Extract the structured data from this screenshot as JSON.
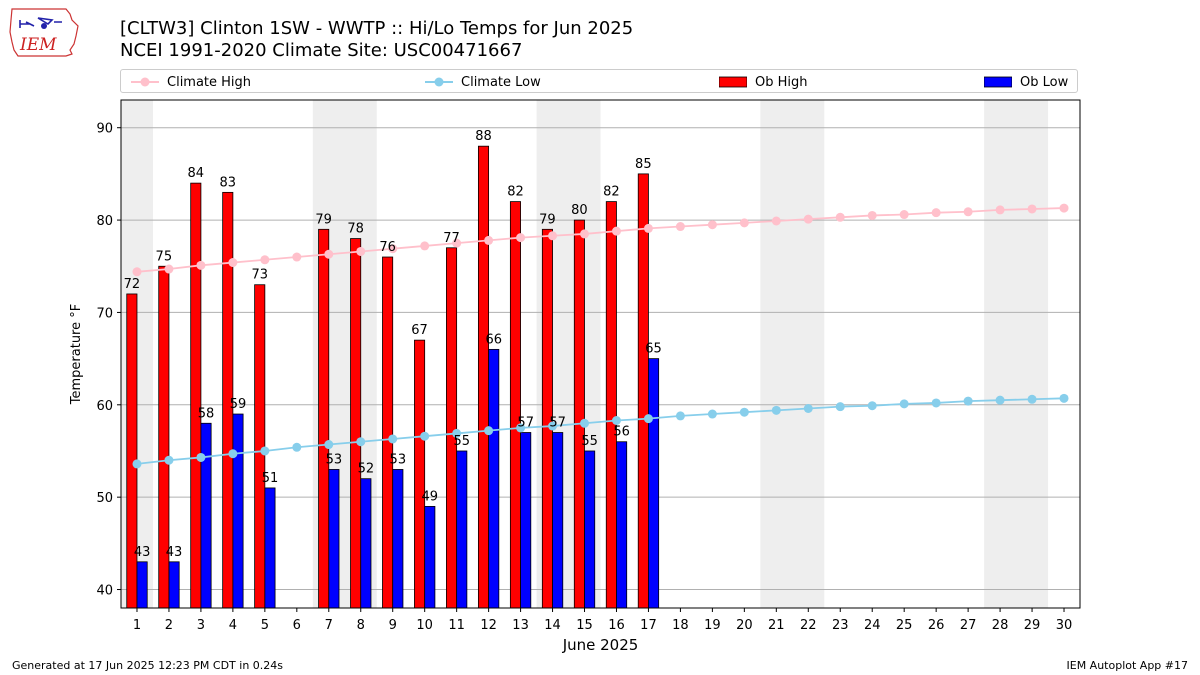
{
  "header": {
    "title_line1": "[CLTW3] Clinton 1SW - WWTP :: Hi/Lo Temps for Jun 2025",
    "title_line2": "NCEI 1991-2020 Climate Site: USC00471667",
    "logo_text": "IEM"
  },
  "footer": {
    "left": "Generated at 17 Jun 2025 12:23 PM CDT in 0.24s",
    "right": "IEM Autoplot App #17"
  },
  "legend": {
    "climate_high": "Climate High",
    "climate_low": "Climate Low",
    "ob_high": "Ob High",
    "ob_low": "Ob Low"
  },
  "colors": {
    "ob_high": "#ff0000",
    "ob_low": "#0000ff",
    "climate_high": "#ffc0cb",
    "climate_low": "#87ceeb",
    "weekend_shade": "#eeeeee",
    "grid": "#b0b0b0"
  },
  "chart_data": {
    "type": "bar",
    "xlabel": "June 2025",
    "ylabel": "Temperature °F",
    "ylim": [
      38,
      93
    ],
    "yticks": [
      40,
      50,
      60,
      70,
      80,
      90
    ],
    "grid": true,
    "legend_position": "top",
    "x": [
      1,
      2,
      3,
      4,
      5,
      6,
      7,
      8,
      9,
      10,
      11,
      12,
      13,
      14,
      15,
      16,
      17,
      18,
      19,
      20,
      21,
      22,
      23,
      24,
      25,
      26,
      27,
      28,
      29,
      30
    ],
    "shaded_weekends": [
      [
        1,
        1
      ],
      [
        7,
        8
      ],
      [
        14,
        15
      ],
      [
        21,
        22
      ],
      [
        28,
        29
      ]
    ],
    "series": [
      {
        "name": "Ob High",
        "kind": "bar",
        "x": [
          1,
          2,
          3,
          4,
          5,
          7,
          8,
          9,
          10,
          11,
          12,
          13,
          14,
          15,
          16,
          17
        ],
        "values": [
          72,
          75,
          84,
          83,
          73,
          79,
          78,
          76,
          67,
          77,
          88,
          82,
          79,
          80,
          82,
          85
        ]
      },
      {
        "name": "Ob Low",
        "kind": "bar",
        "x": [
          1,
          2,
          3,
          4,
          5,
          7,
          8,
          9,
          10,
          11,
          12,
          13,
          14,
          15,
          16,
          17
        ],
        "values": [
          43,
          43,
          58,
          59,
          51,
          53,
          52,
          53,
          49,
          55,
          66,
          57,
          57,
          55,
          56,
          65
        ]
      },
      {
        "name": "Climate High",
        "kind": "line",
        "x": [
          1,
          2,
          3,
          4,
          5,
          6,
          7,
          8,
          9,
          10,
          11,
          12,
          13,
          14,
          15,
          16,
          17,
          18,
          19,
          20,
          21,
          22,
          23,
          24,
          25,
          26,
          27,
          28,
          29,
          30
        ],
        "values": [
          74.4,
          74.7,
          75.1,
          75.4,
          75.7,
          76.0,
          76.3,
          76.6,
          76.9,
          77.2,
          77.5,
          77.8,
          78.1,
          78.3,
          78.5,
          78.8,
          79.1,
          79.3,
          79.5,
          79.7,
          79.9,
          80.1,
          80.3,
          80.5,
          80.6,
          80.8,
          80.9,
          81.1,
          81.2,
          81.3
        ]
      },
      {
        "name": "Climate Low",
        "kind": "line",
        "x": [
          1,
          2,
          3,
          4,
          5,
          6,
          7,
          8,
          9,
          10,
          11,
          12,
          13,
          14,
          15,
          16,
          17,
          18,
          19,
          20,
          21,
          22,
          23,
          24,
          25,
          26,
          27,
          28,
          29,
          30
        ],
        "values": [
          53.6,
          54.0,
          54.3,
          54.7,
          55.0,
          55.4,
          55.7,
          56.0,
          56.3,
          56.6,
          56.9,
          57.2,
          57.5,
          57.7,
          58.0,
          58.3,
          58.5,
          58.8,
          59.0,
          59.2,
          59.4,
          59.6,
          59.8,
          59.9,
          60.1,
          60.2,
          60.4,
          60.5,
          60.6,
          60.7
        ]
      }
    ]
  }
}
